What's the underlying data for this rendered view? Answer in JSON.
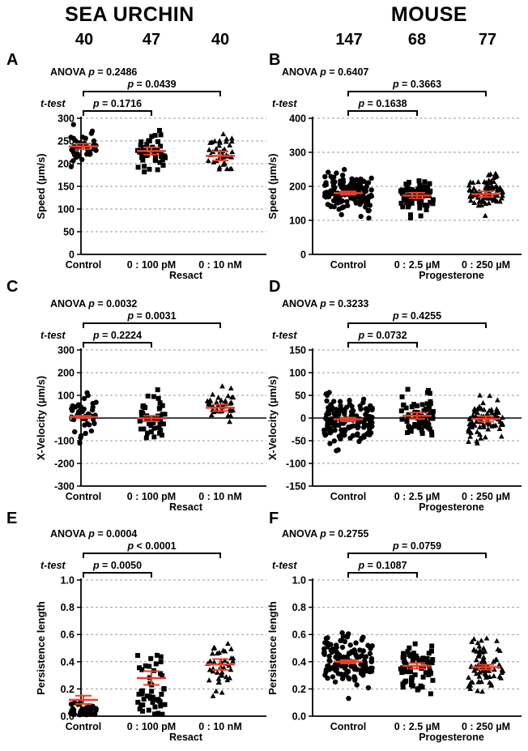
{
  "columns": [
    {
      "title": "SEA URCHIN",
      "n": [
        "40",
        "47",
        "40"
      ]
    },
    {
      "title": "MOUSE",
      "n": [
        "147",
        "68",
        "77"
      ]
    }
  ],
  "chart_data": [
    {
      "panel": "A",
      "type": "scatter",
      "anova_label": "ANOVA",
      "anova_p": "= 0.2486",
      "ttest_label": "t-test",
      "p_short": "= 0.1716",
      "p_long": "= 0.0439",
      "ylabel": "Speed (µm/s)",
      "ylim": [
        0,
        300
      ],
      "yticks": [
        0,
        50,
        100,
        150,
        200,
        250,
        300
      ],
      "categories": [
        "Control",
        "0 : 100 pM",
        "0 : 10 nM"
      ],
      "xgroup": "Resact",
      "means": [
        238,
        228,
        217
      ],
      "sems": [
        6,
        8,
        10
      ]
    },
    {
      "panel": "B",
      "type": "scatter",
      "anova_label": "ANOVA",
      "anova_p": "= 0.6407",
      "ttest_label": "t-test",
      "p_short": "= 0.1638",
      "p_long": "= 0.3663",
      "ylabel": "Speed (µm/s)",
      "ylim": [
        0,
        400
      ],
      "yticks": [
        0,
        100,
        200,
        300,
        400
      ],
      "categories": [
        "Control",
        "0 : 2.5 µM",
        "0 : 250 µM"
      ],
      "xgroup": "Progesterone",
      "means": [
        180,
        173,
        177
      ],
      "sems": [
        5,
        8,
        8
      ]
    },
    {
      "panel": "C",
      "type": "scatter",
      "anova_label": "ANOVA",
      "anova_p": "= 0.0032",
      "ttest_label": "t-test",
      "p_short": "= 0.2224",
      "p_long": "= 0.0031",
      "ylabel": "X-Velocity (µm/s)",
      "ylim": [
        -300,
        300
      ],
      "yticks": [
        -300,
        -200,
        -100,
        0,
        100,
        200,
        300
      ],
      "categories": [
        "Control",
        "0 : 100 pM",
        "0 : 10 nM"
      ],
      "xgroup": "Resact",
      "means": [
        5,
        -2,
        45
      ],
      "sems": [
        5,
        12,
        14
      ]
    },
    {
      "panel": "D",
      "type": "scatter",
      "anova_label": "ANOVA",
      "anova_p": "= 0.3233",
      "ttest_label": "t-test",
      "p_short": "= 0.0732",
      "p_long": "= 0.4255",
      "ylabel": "X-Velocity (µm/s)",
      "ylim": [
        -150,
        150
      ],
      "yticks": [
        -150,
        -100,
        -50,
        0,
        50,
        100,
        150
      ],
      "categories": [
        "Control",
        "0 : 2.5 µM",
        "0 : 250 µM"
      ],
      "xgroup": "Progesterone",
      "means": [
        -3,
        5,
        -2
      ],
      "sems": [
        4,
        7,
        6
      ]
    },
    {
      "panel": "E",
      "type": "scatter",
      "anova_label": "ANOVA",
      "anova_p": "= 0.0004",
      "ttest_label": "t-test",
      "p_short": "= 0.0050",
      "p_long": "< 0.0001",
      "ylabel": "Persistence length",
      "ylim": [
        0,
        1.0
      ],
      "yticks": [
        0,
        0.2,
        0.4,
        0.6,
        0.8,
        1.0
      ],
      "categories": [
        "Control",
        "0 : 100 pM",
        "0 : 10 nM"
      ],
      "xgroup": "Resact",
      "means": [
        0.12,
        0.28,
        0.38
      ],
      "sems": [
        0.03,
        0.05,
        0.04
      ]
    },
    {
      "panel": "F",
      "type": "scatter",
      "anova_label": "ANOVA",
      "anova_p": "= 0.2755",
      "ttest_label": "t-test",
      "p_short": "= 0.1087",
      "p_long": "= 0.0759",
      "ylabel": "Persistence length",
      "ylim": [
        0,
        1.0
      ],
      "yticks": [
        0,
        0.2,
        0.4,
        0.6,
        0.8,
        1.0
      ],
      "categories": [
        "Control",
        "0 : 2.5 µM",
        "0 : 250 µM"
      ],
      "xgroup": "Progesterone",
      "means": [
        0.4,
        0.37,
        0.36
      ],
      "sems": [
        0.012,
        0.02,
        0.018
      ]
    }
  ],
  "colors": {
    "points": "#000000",
    "mean_bar": "#e8402a",
    "gridline": "#9a9a9a"
  }
}
